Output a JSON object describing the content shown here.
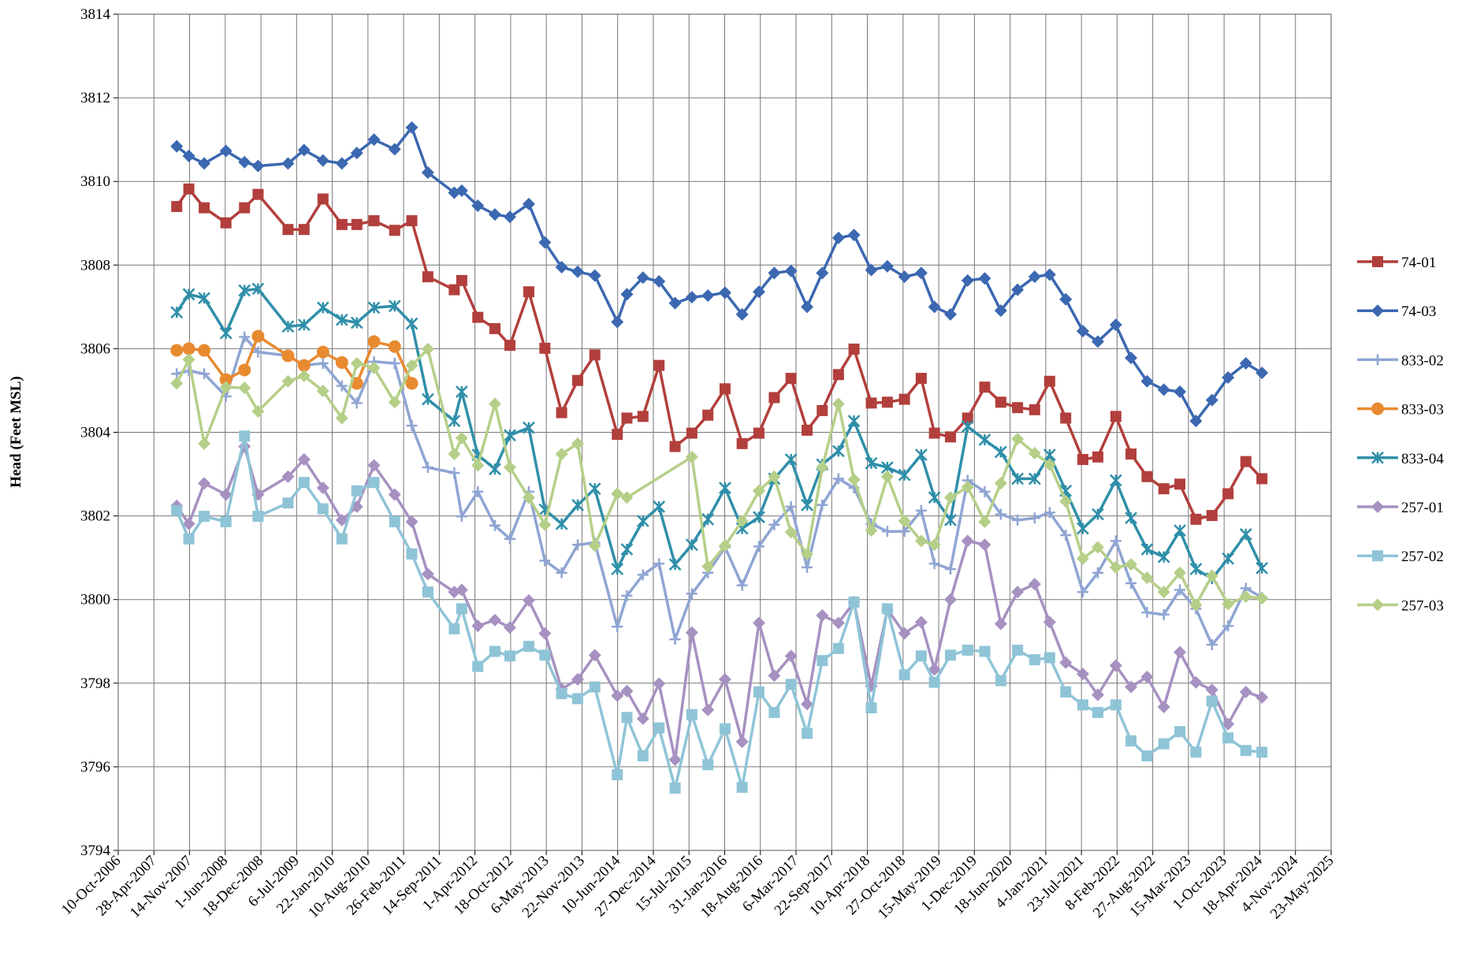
{
  "chart_data": {
    "type": "line",
    "y_label": "Head (Feet MSL)",
    "xlim": [
      "2006-10-10",
      "2025-05-23"
    ],
    "xticks": [
      {
        "value": "2006-10-10",
        "label": "10-Oct-2006"
      },
      {
        "value": "2007-04-28",
        "label": "28-Apr-2007"
      },
      {
        "value": "2007-11-14",
        "label": "14-Nov-2007"
      },
      {
        "value": "2008-06-01",
        "label": "1-Jun-2008"
      },
      {
        "value": "2008-12-18",
        "label": "18-Dec-2008"
      },
      {
        "value": "2009-07-06",
        "label": "6-Jul-2009"
      },
      {
        "value": "2010-01-22",
        "label": "22-Jan-2010"
      },
      {
        "value": "2010-08-10",
        "label": "10-Aug-2010"
      },
      {
        "value": "2011-02-26",
        "label": "26-Feb-2011"
      },
      {
        "value": "2011-09-14",
        "label": "14-Sep-2011"
      },
      {
        "value": "2012-04-01",
        "label": "1-Apr-2012"
      },
      {
        "value": "2012-10-18",
        "label": "18-Oct-2012"
      },
      {
        "value": "2013-05-06",
        "label": "6-May-2013"
      },
      {
        "value": "2013-11-22",
        "label": "22-Nov-2013"
      },
      {
        "value": "2014-06-10",
        "label": "10-Jun-2014"
      },
      {
        "value": "2014-12-27",
        "label": "27-Dec-2014"
      },
      {
        "value": "2015-07-15",
        "label": "15-Jul-2015"
      },
      {
        "value": "2016-01-31",
        "label": "31-Jan-2016"
      },
      {
        "value": "2016-08-18",
        "label": "18-Aug-2016"
      },
      {
        "value": "2017-03-06",
        "label": "6-Mar-2017"
      },
      {
        "value": "2017-09-22",
        "label": "22-Sep-2017"
      },
      {
        "value": "2018-04-10",
        "label": "10-Apr-2018"
      },
      {
        "value": "2018-10-27",
        "label": "27-Oct-2018"
      },
      {
        "value": "2019-05-15",
        "label": "15-May-2019"
      },
      {
        "value": "2019-12-01",
        "label": "1-Dec-2019"
      },
      {
        "value": "2020-06-18",
        "label": "18-Jun-2020"
      },
      {
        "value": "2021-01-04",
        "label": "4-Jan-2021"
      },
      {
        "value": "2021-07-23",
        "label": "23-Jul-2021"
      },
      {
        "value": "2022-02-08",
        "label": "8-Feb-2022"
      },
      {
        "value": "2022-08-27",
        "label": "27-Aug-2022"
      },
      {
        "value": "2023-03-15",
        "label": "15-Mar-2023"
      },
      {
        "value": "2023-10-01",
        "label": "1-Oct-2023"
      },
      {
        "value": "2024-04-18",
        "label": "18-Apr-2024"
      },
      {
        "value": "2024-11-04",
        "label": "4-Nov-2024"
      },
      {
        "value": "2025-05-23",
        "label": "23-May-2025"
      }
    ],
    "ylim": [
      3794,
      3814
    ],
    "yticks": [
      3794,
      3796,
      3798,
      3800,
      3802,
      3804,
      3806,
      3808,
      3810,
      3812,
      3814
    ],
    "grid": true,
    "legend": "right",
    "x": [
      "2007-09-03",
      "2007-11-10",
      "2008-02-04",
      "2008-06-05",
      "2008-09-17",
      "2008-12-02",
      "2009-05-19",
      "2009-08-17",
      "2009-12-01",
      "2010-03-17",
      "2010-06-09",
      "2010-09-13",
      "2011-01-07",
      "2011-04-13",
      "2011-07-12",
      "2011-12-07",
      "2012-01-18",
      "2012-04-17",
      "2012-07-22",
      "2012-10-14",
      "2013-01-28",
      "2013-04-28",
      "2013-07-31",
      "2013-10-29",
      "2014-02-02",
      "2014-06-08",
      "2014-08-01",
      "2014-10-30",
      "2015-01-28",
      "2015-04-28",
      "2015-07-31",
      "2015-10-29",
      "2016-02-02",
      "2016-05-08",
      "2016-08-10",
      "2016-11-04",
      "2017-02-06",
      "2017-05-07",
      "2017-07-31",
      "2017-10-30",
      "2018-01-25",
      "2018-05-02",
      "2018-07-31",
      "2018-11-04",
      "2019-02-06",
      "2019-04-21",
      "2019-07-20",
      "2019-10-24",
      "2020-01-28",
      "2020-04-27",
      "2020-07-30",
      "2020-11-03",
      "2021-01-26",
      "2021-04-26",
      "2021-07-31",
      "2021-10-23",
      "2022-02-01",
      "2022-04-27",
      "2022-07-26",
      "2022-10-28",
      "2023-01-26",
      "2023-04-26",
      "2023-07-25",
      "2023-10-23",
      "2024-01-31",
      "2024-04-30"
    ],
    "series": [
      {
        "name": "74-01",
        "color": "#b23f3c",
        "marker": "square",
        "values": [
          3809.4,
          3809.82,
          3809.37,
          3809.01,
          3809.37,
          3809.69,
          3808.85,
          3808.85,
          3809.58,
          3808.97,
          3808.97,
          3809.06,
          3808.83,
          3809.06,
          3807.72,
          3807.41,
          3807.63,
          3806.75,
          3806.48,
          3806.08,
          3807.36,
          3806.01,
          3804.47,
          3805.24,
          3805.85,
          3803.95,
          3804.34,
          3804.38,
          3805.6,
          3803.66,
          3803.98,
          3804.41,
          3805.04,
          3803.73,
          3803.98,
          3804.83,
          3805.29,
          3804.05,
          3804.52,
          3805.38,
          3805.99,
          3804.7,
          3804.72,
          3804.79,
          3805.29,
          3803.98,
          3803.89,
          3804.34,
          3805.08,
          3804.72,
          3804.59,
          3804.54,
          3805.22,
          3804.34,
          3803.35,
          3803.41,
          3804.38,
          3803.48,
          3802.94,
          3802.65,
          3802.76,
          3801.92,
          3802.01,
          3802.53,
          3803.3,
          3802.89
        ]
      },
      {
        "name": "74-03",
        "color": "#3b68b1",
        "marker": "diamond",
        "values": [
          3810.84,
          3810.61,
          3810.43,
          3810.73,
          3810.46,
          3810.37,
          3810.43,
          3810.75,
          3810.5,
          3810.43,
          3810.68,
          3811.0,
          3810.77,
          3811.29,
          3810.21,
          3809.73,
          3809.78,
          3809.42,
          3809.21,
          3809.15,
          3809.46,
          3808.54,
          3807.95,
          3807.84,
          3807.75,
          3806.64,
          3807.3,
          3807.7,
          3807.61,
          3807.09,
          3807.23,
          3807.27,
          3807.34,
          3806.82,
          3807.36,
          3807.81,
          3807.86,
          3807.0,
          3807.81,
          3808.65,
          3808.72,
          3807.88,
          3807.97,
          3807.72,
          3807.81,
          3807.0,
          3806.82,
          3807.63,
          3807.68,
          3806.91,
          3807.41,
          3807.72,
          3807.77,
          3807.18,
          3806.42,
          3806.17,
          3806.57,
          3805.78,
          3805.22,
          3805.02,
          3804.97,
          3804.27,
          3804.77,
          3805.31,
          3805.65,
          3805.42
        ]
      },
      {
        "name": "833-02",
        "color": "#8fa5d3",
        "marker": "plus",
        "values": [
          3805.4,
          3805.47,
          3805.4,
          3804.86,
          3806.28,
          3805.92,
          3805.83,
          3805.6,
          3805.65,
          3805.11,
          3804.7,
          3805.69,
          3805.65,
          3804.16,
          3803.16,
          3803.03,
          3801.99,
          3802.58,
          3801.77,
          3801.45,
          3802.58,
          3800.93,
          3800.64,
          3801.31,
          3801.36,
          3799.35,
          3800.09,
          3800.59,
          3800.86,
          3799.05,
          3800.14,
          3800.64,
          3801.25,
          3800.34,
          3801.27,
          3801.79,
          3802.22,
          3800.77,
          3802.26,
          3802.89,
          3802.67,
          3801.81,
          3801.63,
          3801.63,
          3802.13,
          3800.86,
          3800.73,
          3802.85,
          3802.58,
          3802.04,
          3801.9,
          3801.95,
          3802.08,
          3801.54,
          3800.18,
          3800.64,
          3801.4,
          3800.39,
          3799.69,
          3799.64,
          3800.23,
          3799.78,
          3798.92,
          3799.37,
          3800.27,
          3800.05
        ]
      },
      {
        "name": "833-03",
        "color": "#e88a30",
        "marker": "circle",
        "values": [
          3805.96,
          3806.0,
          3805.96,
          3805.26,
          3805.49,
          3806.3,
          3805.83,
          3805.6,
          3805.92,
          3805.67,
          3805.17,
          3806.17,
          3806.05,
          3805.17,
          null,
          null,
          null,
          null,
          null,
          null,
          null,
          null,
          null,
          null,
          null,
          null,
          null,
          null,
          null,
          null,
          null,
          null,
          null,
          null,
          null,
          null,
          null,
          null,
          null,
          null,
          null,
          null,
          null,
          null,
          null,
          null,
          null,
          null,
          null,
          null,
          null,
          null,
          null,
          null,
          null,
          null,
          null,
          null,
          null,
          null,
          null,
          null,
          null,
          null,
          null,
          null
        ]
      },
      {
        "name": "833-04",
        "color": "#2f8fa9",
        "marker": "asterisk",
        "values": [
          3806.87,
          3807.3,
          3807.21,
          3806.37,
          3807.39,
          3807.43,
          3806.53,
          3806.57,
          3806.98,
          3806.69,
          3806.62,
          3806.98,
          3807.02,
          3806.6,
          3804.79,
          3804.27,
          3804.97,
          3803.46,
          3803.12,
          3803.93,
          3804.11,
          3802.15,
          3801.81,
          3802.26,
          3802.65,
          3800.73,
          3801.2,
          3801.88,
          3802.22,
          3800.84,
          3801.31,
          3801.92,
          3802.67,
          3801.7,
          3801.97,
          3802.89,
          3803.35,
          3802.26,
          3803.23,
          3803.55,
          3804.27,
          3803.26,
          3803.16,
          3802.98,
          3803.46,
          3802.44,
          3801.9,
          3804.14,
          3803.82,
          3803.53,
          3802.89,
          3802.89,
          3803.46,
          3802.6,
          3801.7,
          3802.04,
          3802.85,
          3801.95,
          3801.2,
          3801.02,
          3801.65,
          3800.73,
          3800.5,
          3800.98,
          3801.56,
          3800.75
        ]
      },
      {
        "name": "257-01",
        "color": "#a691c1",
        "marker": "diamond",
        "values": [
          3802.24,
          3801.81,
          3802.78,
          3802.51,
          3803.66,
          3802.51,
          3802.94,
          3803.35,
          3802.67,
          3801.9,
          3802.22,
          3803.21,
          3802.51,
          3801.86,
          3800.61,
          3800.18,
          3800.23,
          3799.37,
          3799.51,
          3799.33,
          3799.98,
          3799.19,
          3797.86,
          3798.09,
          3798.67,
          3797.7,
          3797.81,
          3797.15,
          3797.99,
          3796.17,
          3799.21,
          3797.36,
          3798.09,
          3796.6,
          3799.44,
          3798.18,
          3798.65,
          3797.5,
          3799.62,
          3799.44,
          3799.94,
          3797.93,
          3799.76,
          3799.19,
          3799.46,
          3798.33,
          3800.0,
          3801.4,
          3801.31,
          3799.42,
          3800.18,
          3800.37,
          3799.46,
          3798.49,
          3798.22,
          3797.72,
          3798.42,
          3797.91,
          3798.15,
          3797.43,
          3798.74,
          3798.02,
          3797.84,
          3797.02,
          3797.79,
          3797.66
        ]
      },
      {
        "name": "257-02",
        "color": "#8fc4d7",
        "marker": "square",
        "values": [
          3802.13,
          3801.45,
          3801.99,
          3801.86,
          3803.91,
          3801.99,
          3802.31,
          3802.8,
          3802.17,
          3801.45,
          3802.6,
          3802.8,
          3801.86,
          3801.09,
          3800.18,
          3799.3,
          3799.78,
          3798.4,
          3798.76,
          3798.65,
          3798.88,
          3798.67,
          3797.75,
          3797.63,
          3797.91,
          3795.81,
          3797.18,
          3796.26,
          3796.93,
          3795.49,
          3797.25,
          3796.05,
          3796.91,
          3795.51,
          3797.79,
          3797.3,
          3797.97,
          3796.8,
          3798.54,
          3798.83,
          3799.94,
          3797.41,
          3799.78,
          3798.2,
          3798.65,
          3798.02,
          3798.67,
          3798.79,
          3798.76,
          3798.06,
          3798.79,
          3798.56,
          3798.61,
          3797.79,
          3797.48,
          3797.3,
          3797.48,
          3796.62,
          3796.26,
          3796.55,
          3796.84,
          3796.35,
          3797.57,
          3796.69,
          3796.39,
          3796.35
        ]
      },
      {
        "name": "257-03",
        "color": "#b5cf88",
        "marker": "diamond",
        "x": [
          "2007-09-03",
          "2007-11-10",
          "2008-02-04",
          "2008-06-05",
          "2008-09-17",
          "2008-12-02",
          "2009-05-19",
          "2009-08-17",
          "2009-12-01",
          "2010-03-17",
          "2010-06-09",
          "2010-09-13",
          "2011-01-07",
          "2011-04-13",
          "2011-07-12",
          "2011-12-07",
          "2012-01-18",
          "2012-04-17",
          "2012-07-22",
          "2012-10-14",
          "2013-01-28",
          "2013-04-28",
          "2013-07-31",
          "2013-10-29",
          "2014-02-02",
          "2014-06-08",
          "2014-08-01",
          "2015-07-31",
          "2015-10-29",
          "2016-02-02",
          "2016-05-08",
          "2016-08-10",
          "2016-11-04",
          "2017-02-06",
          "2017-05-07",
          "2017-07-31",
          "2017-10-30",
          "2018-01-25",
          "2018-05-02",
          "2018-07-31",
          "2018-11-04",
          "2019-02-06",
          "2019-04-21",
          "2019-07-20",
          "2019-10-24",
          "2020-01-28",
          "2020-04-27",
          "2020-07-30",
          "2020-11-03",
          "2021-01-26",
          "2021-04-26",
          "2021-07-31",
          "2021-10-23",
          "2022-02-01",
          "2022-04-27",
          "2022-07-26",
          "2022-10-28",
          "2023-01-26",
          "2023-04-26",
          "2023-07-25",
          "2023-10-23",
          "2024-01-31",
          "2024-04-30"
        ],
        "values": [
          3805.17,
          3805.74,
          3803.73,
          3805.08,
          3805.06,
          3804.5,
          3805.22,
          3805.35,
          3804.99,
          3804.34,
          3805.65,
          3805.54,
          3804.72,
          3805.6,
          3805.99,
          3803.48,
          3803.86,
          3803.21,
          3804.68,
          3803.16,
          3802.44,
          3801.79,
          3803.48,
          3803.73,
          3801.29,
          3802.53,
          3802.44,
          3803.41,
          3800.79,
          3801.29,
          3801.88,
          3802.6,
          3802.94,
          3801.61,
          3801.09,
          3803.16,
          3804.68,
          3802.87,
          3801.65,
          3802.94,
          3801.88,
          3801.4,
          3801.31,
          3802.44,
          3802.69,
          3801.86,
          3802.78,
          3803.84,
          3803.5,
          3803.23,
          3802.35,
          3800.98,
          3801.25,
          3800.77,
          3800.84,
          3800.52,
          3800.18,
          3800.64,
          3799.87,
          3800.57,
          3799.89,
          3800.07,
          3800.03
        ]
      }
    ]
  }
}
